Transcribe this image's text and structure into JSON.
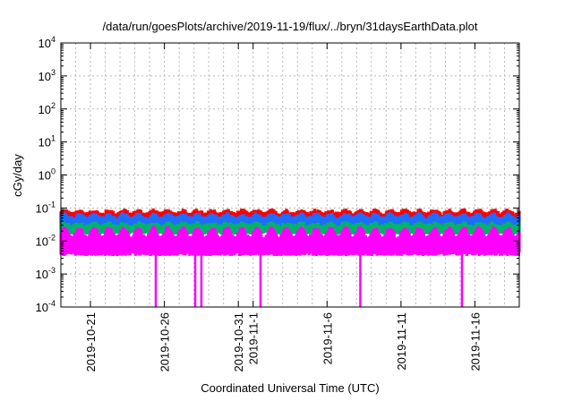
{
  "chart_data": {
    "type": "area",
    "title": "/data/run/goesPlots/archive/2019-11-19/flux/../bryn/31daysEarthData.plot",
    "xlabel": "Coordinated Universal Time (UTC)",
    "ylabel": "cGy/day",
    "y_scale": "log",
    "ylim": [
      0.0001,
      10000
    ],
    "y_ticks": [
      {
        "base": "10",
        "exp": "-4"
      },
      {
        "base": "10",
        "exp": "-3"
      },
      {
        "base": "10",
        "exp": "-2"
      },
      {
        "base": "10",
        "exp": "-1"
      },
      {
        "base": "10",
        "exp": "0"
      },
      {
        "base": "10",
        "exp": "1"
      },
      {
        "base": "10",
        "exp": "2"
      },
      {
        "base": "10",
        "exp": "3"
      },
      {
        "base": "10",
        "exp": "4"
      }
    ],
    "xlim": [
      "2019-10-19",
      "2019-11-19"
    ],
    "x_ticks": [
      {
        "date": "2019-10-21",
        "label": "2019-10-21"
      },
      {
        "date": "2019-10-26",
        "label": "2019-10-26"
      },
      {
        "date": "2019-10-31",
        "label": "2019-10-31"
      },
      {
        "date": "2019-11-01",
        "label": "2019-11-1"
      },
      {
        "date": "2019-11-06",
        "label": "2019-11-6"
      },
      {
        "date": "2019-11-11",
        "label": "2019-11-11"
      },
      {
        "date": "2019-11-16",
        "label": "2019-11-16"
      }
    ],
    "grid": true,
    "series": [
      {
        "color": "#ff0000",
        "daily_peak": 0.085,
        "daily_base": 0.05
      },
      {
        "color": "#1f6cff",
        "daily_peak": 0.065,
        "daily_base": 0.035
      },
      {
        "color": "#00b36b",
        "daily_peak": 0.035,
        "daily_base": 0.022
      },
      {
        "color": "#ff00ff",
        "daily_peak": 0.025,
        "daily_base": 0.0055
      }
    ],
    "dropouts": [
      {
        "date": "2019-10-25T10:00",
        "value": 0.0001
      },
      {
        "date": "2019-10-28T02:00",
        "value": 0.0001
      },
      {
        "date": "2019-10-28T12:00",
        "value": 0.0001
      },
      {
        "date": "2019-11-01T12:00",
        "value": 0.0001
      },
      {
        "date": "2019-11-08T06:00",
        "value": 0.0001
      },
      {
        "date": "2019-11-15T03:00",
        "value": 0.0001
      }
    ]
  }
}
